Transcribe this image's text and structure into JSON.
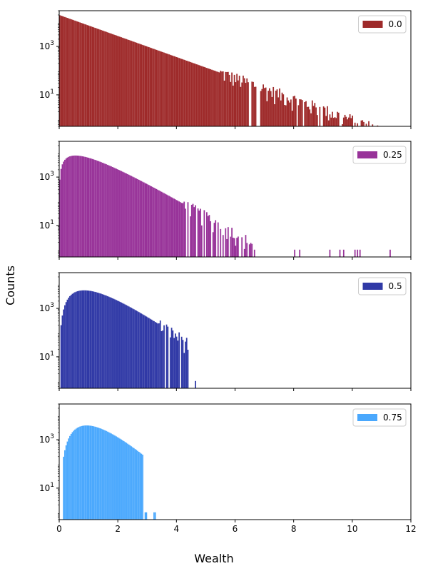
{
  "figure": {
    "ylabel": "Counts",
    "xlabel": "Wealth"
  },
  "chart_data": [
    {
      "type": "bar",
      "series": [
        {
          "name": "0.0",
          "color": "#9e2a2a"
        }
      ],
      "yscale": "log",
      "ylim": [
        0.5,
        30000
      ],
      "xlim": [
        0,
        12
      ],
      "y_tick_labels": [
        "10^3",
        "10^1"
      ],
      "legend_position": "top-right",
      "distribution": {
        "peak_x": 0.0,
        "peak_count": 20000,
        "decay": "exponential",
        "max_x": 11.4
      }
    },
    {
      "type": "bar",
      "series": [
        {
          "name": "0.25",
          "color": "#983399"
        }
      ],
      "yscale": "log",
      "ylim": [
        0.5,
        30000
      ],
      "xlim": [
        0,
        12
      ],
      "y_tick_labels": [
        "10^3",
        "10^1"
      ],
      "legend_position": "top-right",
      "distribution": {
        "peak_x": 0.55,
        "peak_count": 20000,
        "max_x": 8.2
      }
    },
    {
      "type": "bar",
      "series": [
        {
          "name": "0.5",
          "color": "#3039a6"
        }
      ],
      "yscale": "log",
      "ylim": [
        0.5,
        30000
      ],
      "xlim": [
        0,
        12
      ],
      "y_tick_labels": [
        "10^3",
        "10^1"
      ],
      "legend_position": "top-right",
      "distribution": {
        "peak_x": 0.85,
        "peak_count": 20000,
        "max_x": 5.6
      }
    },
    {
      "type": "bar",
      "series": [
        {
          "name": "0.75",
          "color": "#4aa8fd"
        }
      ],
      "yscale": "log",
      "ylim": [
        0.5,
        30000
      ],
      "xlim": [
        0,
        12
      ],
      "y_tick_labels": [
        "10^3",
        "10^1"
      ],
      "x_tick_labels": [
        "0",
        "2",
        "4",
        "6",
        "8",
        "10",
        "12"
      ],
      "legend_position": "top-right",
      "distribution": {
        "peak_x": 0.95,
        "peak_count": 30000,
        "max_x": 3.25
      }
    }
  ]
}
